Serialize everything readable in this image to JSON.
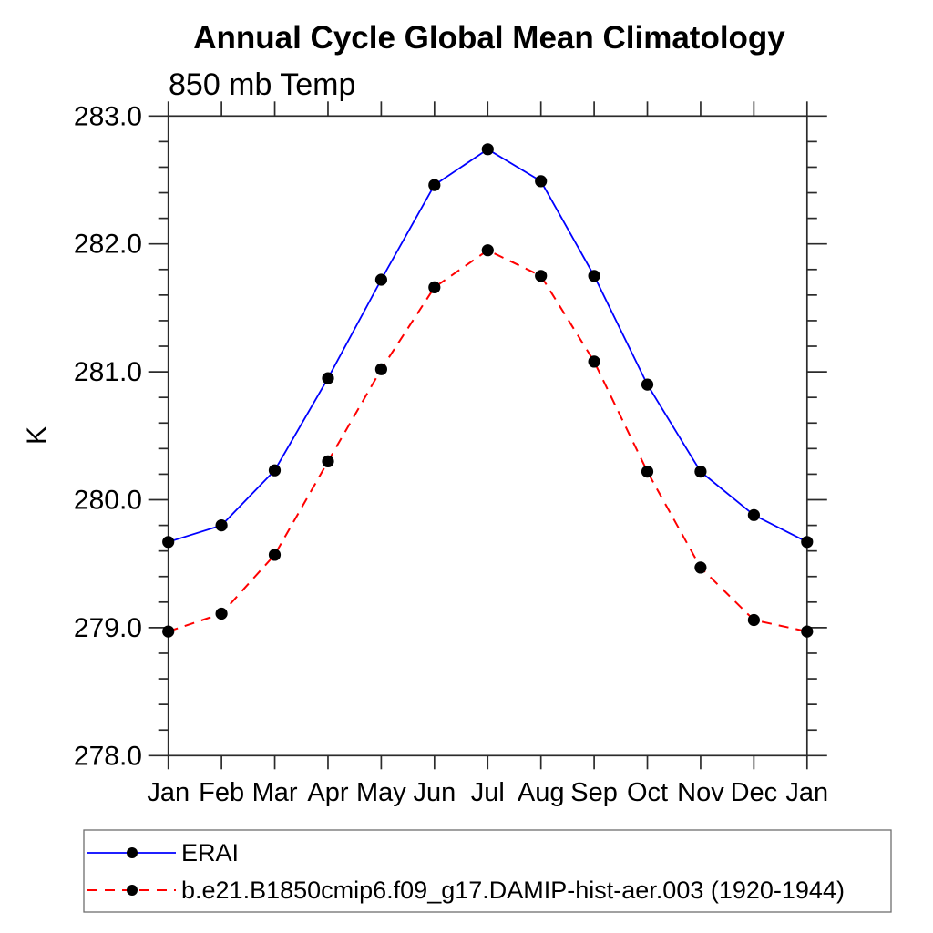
{
  "title": "Annual Cycle Global Mean Climatology",
  "subtitle": "850 mb Temp",
  "ylabel": "K",
  "colors": {
    "erai_line": "#0000ff",
    "model_line": "#ff0000",
    "marker": "#000000",
    "axis": "#2b2b2b",
    "legend_border": "#6e6e6e"
  },
  "chart_data": {
    "type": "line",
    "title": "Annual Cycle Global Mean Climatology",
    "subtitle": "850 mb Temp",
    "xlabel": "",
    "ylabel": "K",
    "categories": [
      "Jan",
      "Feb",
      "Mar",
      "Apr",
      "May",
      "Jun",
      "Jul",
      "Aug",
      "Sep",
      "Oct",
      "Nov",
      "Dec",
      "Jan"
    ],
    "series": [
      {
        "name": "ERAI",
        "line_style": "solid",
        "color": "#0000ff",
        "marker": "filled-circle",
        "values": [
          279.67,
          279.8,
          280.23,
          280.95,
          281.72,
          282.46,
          282.74,
          282.49,
          281.75,
          280.9,
          280.22,
          279.88,
          279.67
        ]
      },
      {
        "name": "b.e21.B1850cmip6.f09_g17.DAMIP-hist-aer.003 (1920-1944)",
        "line_style": "dashed",
        "color": "#ff0000",
        "marker": "filled-circle",
        "values": [
          278.97,
          279.11,
          279.57,
          280.3,
          281.02,
          281.66,
          281.95,
          281.75,
          281.08,
          280.22,
          279.47,
          279.06,
          278.97
        ]
      }
    ],
    "ylim": [
      278.0,
      283.0
    ],
    "y_major_step": 1.0,
    "y_minor_step": 0.2,
    "y_tick_labels": [
      "278.0",
      "279.0",
      "280.0",
      "281.0",
      "282.0",
      "283.0"
    ],
    "grid": false,
    "legend_position": "bottom-left"
  }
}
